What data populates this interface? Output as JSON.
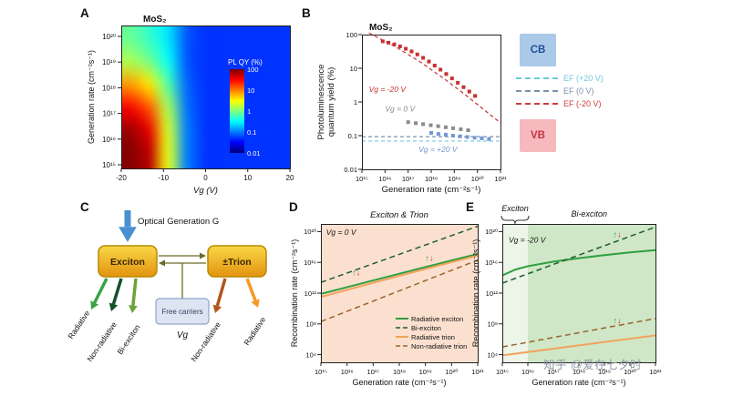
{
  "watermark": "知乎 @爱在七夕时",
  "panel_labels": {
    "A": "A",
    "B": "B",
    "C": "C",
    "D": "D",
    "E": "E"
  },
  "spin_glyphs": {
    "up": "↑",
    "down": "↓"
  },
  "spin_colors": {
    "up": "#2f9e41",
    "down": "#c93030"
  },
  "band_legend": {
    "cb_label": "CB",
    "vb_label": "VB",
    "cb_color": "#abc9e9",
    "cb_text_color": "#1e4f9b",
    "vb_color": "#f6b9bd",
    "vb_text_color": "#c2353f",
    "levels": [
      {
        "label": "EF (+20 V)",
        "color": "#6fc9de"
      },
      {
        "label": "EF (0 V)",
        "color": "#7b90a8"
      },
      {
        "label": "EF (-20 V)",
        "color": "#d23b3b"
      }
    ]
  },
  "diagram": {
    "optical_label": "Optical Generation G",
    "exciton_box": "Exciton",
    "trion_box": "±Trion",
    "free_carriers_box": "Free carriers",
    "gate_label": "Vg",
    "arrow_color": "#4a90d0",
    "connector_color": "#6b6b2a",
    "exciton_channels": [
      {
        "label": "Radiative",
        "color": "#3aa347"
      },
      {
        "label": "Non-radiative",
        "color": "#14532a"
      },
      {
        "label": "Bi-exciton",
        "color": "#6aa33a"
      }
    ],
    "trion_channels": [
      {
        "label": "Non-radiative",
        "color": "#b3541e"
      },
      {
        "label": "Radiative",
        "color": "#f59a23"
      }
    ]
  },
  "chart_data": [
    {
      "panel": "A",
      "type": "heatmap",
      "title": "MoS₂",
      "xlabel": "Vg (V)",
      "ylabel": "Generation rate (cm⁻²s⁻¹)",
      "x_range": [
        -20,
        20
      ],
      "x_ticks": [
        "-20",
        "-10",
        "0",
        "10",
        "20"
      ],
      "x_tick_vals": [
        -20,
        -10,
        0,
        10,
        20
      ],
      "y_ticks": [
        "10²⁰",
        "10¹⁹",
        "10¹⁸",
        "10¹⁷",
        "10¹⁶",
        "10¹⁵"
      ],
      "colorbar_title": "PL QY (%)",
      "colorbar_ticks": [
        "100",
        "10",
        "1",
        "0.1",
        "0.01"
      ],
      "qy_log_range": [
        -2,
        2
      ],
      "vg_values": [
        -20,
        -15,
        -10,
        -5,
        0,
        5,
        10,
        15,
        20
      ],
      "generation_rate_log": [
        20,
        19,
        18,
        17,
        16,
        15
      ],
      "pl_qy_grid": [
        [
          0.8,
          0.5,
          0.25,
          0.07,
          0.05,
          0.05,
          0.05,
          0.05,
          0.05
        ],
        [
          1.5,
          0.9,
          0.35,
          0.07,
          0.05,
          0.05,
          0.05,
          0.05,
          0.05
        ],
        [
          8,
          4,
          0.7,
          0.08,
          0.05,
          0.05,
          0.05,
          0.05,
          0.05
        ],
        [
          35,
          15,
          1.5,
          0.09,
          0.05,
          0.05,
          0.05,
          0.05,
          0.05
        ],
        [
          80,
          40,
          2.2,
          0.1,
          0.05,
          0.05,
          0.05,
          0.05,
          0.05
        ],
        [
          95,
          60,
          2.5,
          0.1,
          0.05,
          0.05,
          0.05,
          0.05,
          0.05
        ]
      ]
    },
    {
      "panel": "B",
      "type": "scatter",
      "title": "MoS₂",
      "xlabel": "Generation rate (cm⁻²s⁻¹)",
      "ylabel_lines": [
        "Photoluminescence",
        "quantum yield (%)"
      ],
      "x_range_log": [
        15,
        21
      ],
      "y_range_log": [
        -2,
        2
      ],
      "x_ticks": [
        "10¹⁵",
        "10¹⁶",
        "10¹⁷",
        "10¹⁸",
        "10¹⁹",
        "10²⁰",
        "10²¹"
      ],
      "x_tick_vals": [
        15,
        16,
        17,
        18,
        19,
        20,
        21
      ],
      "y_ticks": [
        "100",
        "10",
        "1",
        "0.1",
        "0.01"
      ],
      "y_tick_vals": [
        2,
        1,
        0,
        -1,
        -2
      ],
      "series": [
        {
          "name": "Vg = -20 V",
          "color": "#c93030",
          "marker": "square",
          "x_log": [
            15.9,
            16.15,
            16.4,
            16.65,
            16.9,
            17.15,
            17.4,
            17.65,
            17.9,
            18.15,
            18.4,
            18.65,
            18.9,
            19.15,
            19.4,
            19.65,
            19.9
          ],
          "y_log": [
            1.8,
            1.76,
            1.71,
            1.65,
            1.58,
            1.5,
            1.41,
            1.31,
            1.2,
            1.08,
            0.96,
            0.83,
            0.7,
            0.57,
            0.44,
            0.31,
            0.18
          ]
        },
        {
          "name": "Vg = 0 V",
          "color": "#8a8a8a",
          "marker": "square",
          "x_log": [
            17.0,
            17.33,
            17.65,
            17.98,
            18.3,
            18.63,
            18.95,
            19.28,
            19.6
          ],
          "y_log": [
            -0.6,
            -0.63,
            -0.66,
            -0.69,
            -0.72,
            -0.75,
            -0.78,
            -0.81,
            -0.84
          ]
        },
        {
          "name": "Vg = +20 V",
          "color": "#6f97d4",
          "marker": "square",
          "x_log": [
            18.0,
            18.31,
            18.63,
            18.94,
            19.25,
            19.56,
            19.88,
            20.19,
            20.5
          ],
          "y_log": [
            -0.92,
            -0.95,
            -0.97,
            -1.0,
            -1.02,
            -1.04,
            -1.06,
            -1.08,
            -1.1
          ]
        }
      ],
      "fit_line": {
        "name": "fit Vg = -20 V",
        "color": "#c93030",
        "x_log": [
          15.3,
          16.5,
          17.5,
          18.5,
          19.5,
          20.5,
          21.0
        ],
        "y_log": [
          2.05,
          1.62,
          1.2,
          0.72,
          0.2,
          -0.35,
          -0.62
        ]
      },
      "ref_lines": [
        {
          "name": "EF (0 V) level",
          "color": "#7b90a8",
          "y_log": -1.03
        },
        {
          "name": "EF (+20 V) level",
          "color": "#6fc9de",
          "y_log": -1.16
        }
      ],
      "annotations": [
        {
          "text": "Vg = -20 V",
          "color": "#c93030",
          "x_log": 15.3,
          "y_log": 0.3
        },
        {
          "text": "Vg = 0 V",
          "color": "#8a8a8a",
          "x_log": 16.0,
          "y_log": -0.28
        },
        {
          "text": "Vg = +20 V",
          "color": "#6f97d4",
          "x_log": 17.45,
          "y_log": -1.48
        }
      ]
    },
    {
      "panel": "D",
      "type": "line",
      "title": "Exciton & Trion",
      "annotation": {
        "text": "Vg = 0 V",
        "x_log": 15.2,
        "y_log": 19.6
      },
      "xlabel": "Generation rate (cm⁻²s⁻¹)",
      "ylabel": "Recombination rate (cm⁻²s⁻¹)",
      "x_range_log": [
        15,
        21
      ],
      "y_range_log": [
        3,
        21
      ],
      "x_ticks": [
        "10¹⁵",
        "10¹⁶",
        "10¹⁷",
        "10¹⁸",
        "10¹⁹",
        "10²⁰",
        "10²¹"
      ],
      "x_tick_vals": [
        15,
        16,
        17,
        18,
        19,
        20,
        21
      ],
      "y_ticks": [
        "10²⁰",
        "10¹⁶",
        "10¹²",
        "10⁸",
        "10⁴"
      ],
      "y_tick_vals": [
        20,
        16,
        12,
        8,
        4
      ],
      "bg_color": "#fbe0cf",
      "legend": true,
      "series": [
        {
          "name": "Radiative exciton",
          "color": "#2f9e41",
          "dash": false,
          "x_log": [
            15,
            17,
            19,
            21
          ],
          "y_log": [
            11.9,
            13.65,
            15.4,
            17.1
          ]
        },
        {
          "name": "Bi-exciton",
          "color": "#1c5c2e",
          "dash": true,
          "x_log": [
            15,
            21
          ],
          "y_log": [
            13.4,
            20.7
          ]
        },
        {
          "name": "Radiative trion",
          "color": "#f2a25c",
          "dash": false,
          "x_log": [
            15,
            17,
            19,
            21
          ],
          "y_log": [
            11.5,
            13.35,
            15.15,
            16.9
          ]
        },
        {
          "name": "Non-radiative trion",
          "color": "#9a642e",
          "dash": true,
          "x_log": [
            15,
            21
          ],
          "y_log": [
            8.3,
            16.3
          ]
        }
      ],
      "spin_annotations": [
        {
          "x_log": 16.35,
          "y_log": 14.3
        },
        {
          "x_log": 19.15,
          "y_log": 16.2
        }
      ]
    },
    {
      "panel": "E",
      "type": "line",
      "region_labels": [
        {
          "text": "Exciton",
          "x_log": 15.5
        },
        {
          "text": "Bi-exciton",
          "x_log": 18.4
        }
      ],
      "annotation": {
        "text": "Vg = -20 V",
        "x_log": 15.25,
        "y_log": 18.6
      },
      "xlabel": "Generation rate (cm⁻²s⁻¹)",
      "ylabel": "Recombination rate (cm⁻²s⁻¹)",
      "x_range_log": [
        15,
        21
      ],
      "y_range_log": [
        3,
        21
      ],
      "x_ticks": [
        "10¹⁵",
        "10¹⁶",
        "10¹⁷",
        "10¹⁸",
        "10¹⁹",
        "10²⁰",
        "10²¹"
      ],
      "x_tick_vals": [
        15,
        16,
        17,
        18,
        19,
        20,
        21
      ],
      "y_ticks": [
        "10²⁰",
        "10¹⁶",
        "10¹²",
        "10⁸",
        "10⁴"
      ],
      "y_tick_vals": [
        20,
        16,
        12,
        8,
        4
      ],
      "bg_color": "#cfe7c6",
      "strip": {
        "color": "#edf5e8",
        "x_log": [
          15,
          16
        ]
      },
      "legend": false,
      "series": [
        {
          "name": "Radiative exciton",
          "color": "#2f9e41",
          "dash": false,
          "x_log": [
            15,
            15.5,
            16,
            17,
            18,
            19,
            20,
            21
          ],
          "y_log": [
            14.3,
            15.05,
            15.5,
            16.1,
            16.55,
            16.95,
            17.3,
            17.6
          ]
        },
        {
          "name": "Bi-exciton",
          "color": "#1c5c2e",
          "dash": true,
          "x_log": [
            15,
            21
          ],
          "y_log": [
            13.3,
            20.6
          ]
        },
        {
          "name": "Non-radiative trion",
          "color": "#9a642e",
          "dash": true,
          "x_log": [
            15,
            21
          ],
          "y_log": [
            5.0,
            8.7
          ]
        },
        {
          "name": "Radiative trion",
          "color": "#f2a25c",
          "dash": false,
          "x_log": [
            15,
            21
          ],
          "y_log": [
            3.9,
            6.5
          ]
        }
      ],
      "spin_annotations": [
        {
          "x_log": 19.5,
          "y_log": 19.3
        },
        {
          "x_log": 19.5,
          "y_log": 8.1
        }
      ]
    }
  ]
}
